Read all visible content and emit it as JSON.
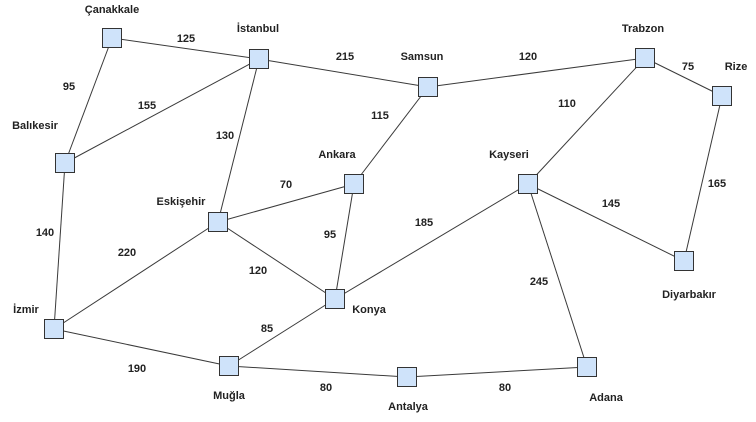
{
  "diagram": {
    "nodes": [
      {
        "id": "canakkale",
        "label": "Çanakkale"
      },
      {
        "id": "istanbul",
        "label": "İstanbul"
      },
      {
        "id": "samsun",
        "label": "Samsun"
      },
      {
        "id": "trabzon",
        "label": "Trabzon"
      },
      {
        "id": "rize",
        "label": "Rize"
      },
      {
        "id": "balikesir",
        "label": "Balıkesir"
      },
      {
        "id": "ankara",
        "label": "Ankara"
      },
      {
        "id": "kayseri",
        "label": "Kayseri"
      },
      {
        "id": "eskisehir",
        "label": "Eskişehir"
      },
      {
        "id": "diyarbakir",
        "label": "Diyarbakır"
      },
      {
        "id": "izmir",
        "label": "İzmir"
      },
      {
        "id": "konya",
        "label": "Konya"
      },
      {
        "id": "mugla",
        "label": "Muğla"
      },
      {
        "id": "antalya",
        "label": "Antalya"
      },
      {
        "id": "adana",
        "label": "Adana"
      }
    ],
    "edges": [
      {
        "from": "canakkale",
        "to": "istanbul",
        "weight": "125"
      },
      {
        "from": "canakkale",
        "to": "balikesir",
        "weight": "95"
      },
      {
        "from": "istanbul",
        "to": "balikesir",
        "weight": "155"
      },
      {
        "from": "istanbul",
        "to": "samsun",
        "weight": "215"
      },
      {
        "from": "istanbul",
        "to": "eskisehir",
        "weight": "130"
      },
      {
        "from": "samsun",
        "to": "trabzon",
        "weight": "120"
      },
      {
        "from": "samsun",
        "to": "ankara",
        "weight": "115"
      },
      {
        "from": "trabzon",
        "to": "rize",
        "weight": "75"
      },
      {
        "from": "trabzon",
        "to": "kayseri",
        "weight": "110"
      },
      {
        "from": "rize",
        "to": "diyarbakir",
        "weight": "165"
      },
      {
        "from": "balikesir",
        "to": "izmir",
        "weight": "140"
      },
      {
        "from": "ankara",
        "to": "eskisehir",
        "weight": "70"
      },
      {
        "from": "ankara",
        "to": "konya",
        "weight": "95"
      },
      {
        "from": "kayseri",
        "to": "konya",
        "weight": "185"
      },
      {
        "from": "kayseri",
        "to": "diyarbakir",
        "weight": "145"
      },
      {
        "from": "kayseri",
        "to": "adana",
        "weight": "245"
      },
      {
        "from": "eskisehir",
        "to": "izmir",
        "weight": "220"
      },
      {
        "from": "eskisehir",
        "to": "konya",
        "weight": "120"
      },
      {
        "from": "izmir",
        "to": "mugla",
        "weight": "190"
      },
      {
        "from": "konya",
        "to": "mugla",
        "weight": "85"
      },
      {
        "from": "mugla",
        "to": "antalya",
        "weight": "80"
      },
      {
        "from": "antalya",
        "to": "adana",
        "weight": "80"
      }
    ]
  },
  "colors": {
    "node_fill": "#cfe3fa",
    "node_stroke": "#333333",
    "edge": "#3a3a3a",
    "text": "#222222"
  }
}
